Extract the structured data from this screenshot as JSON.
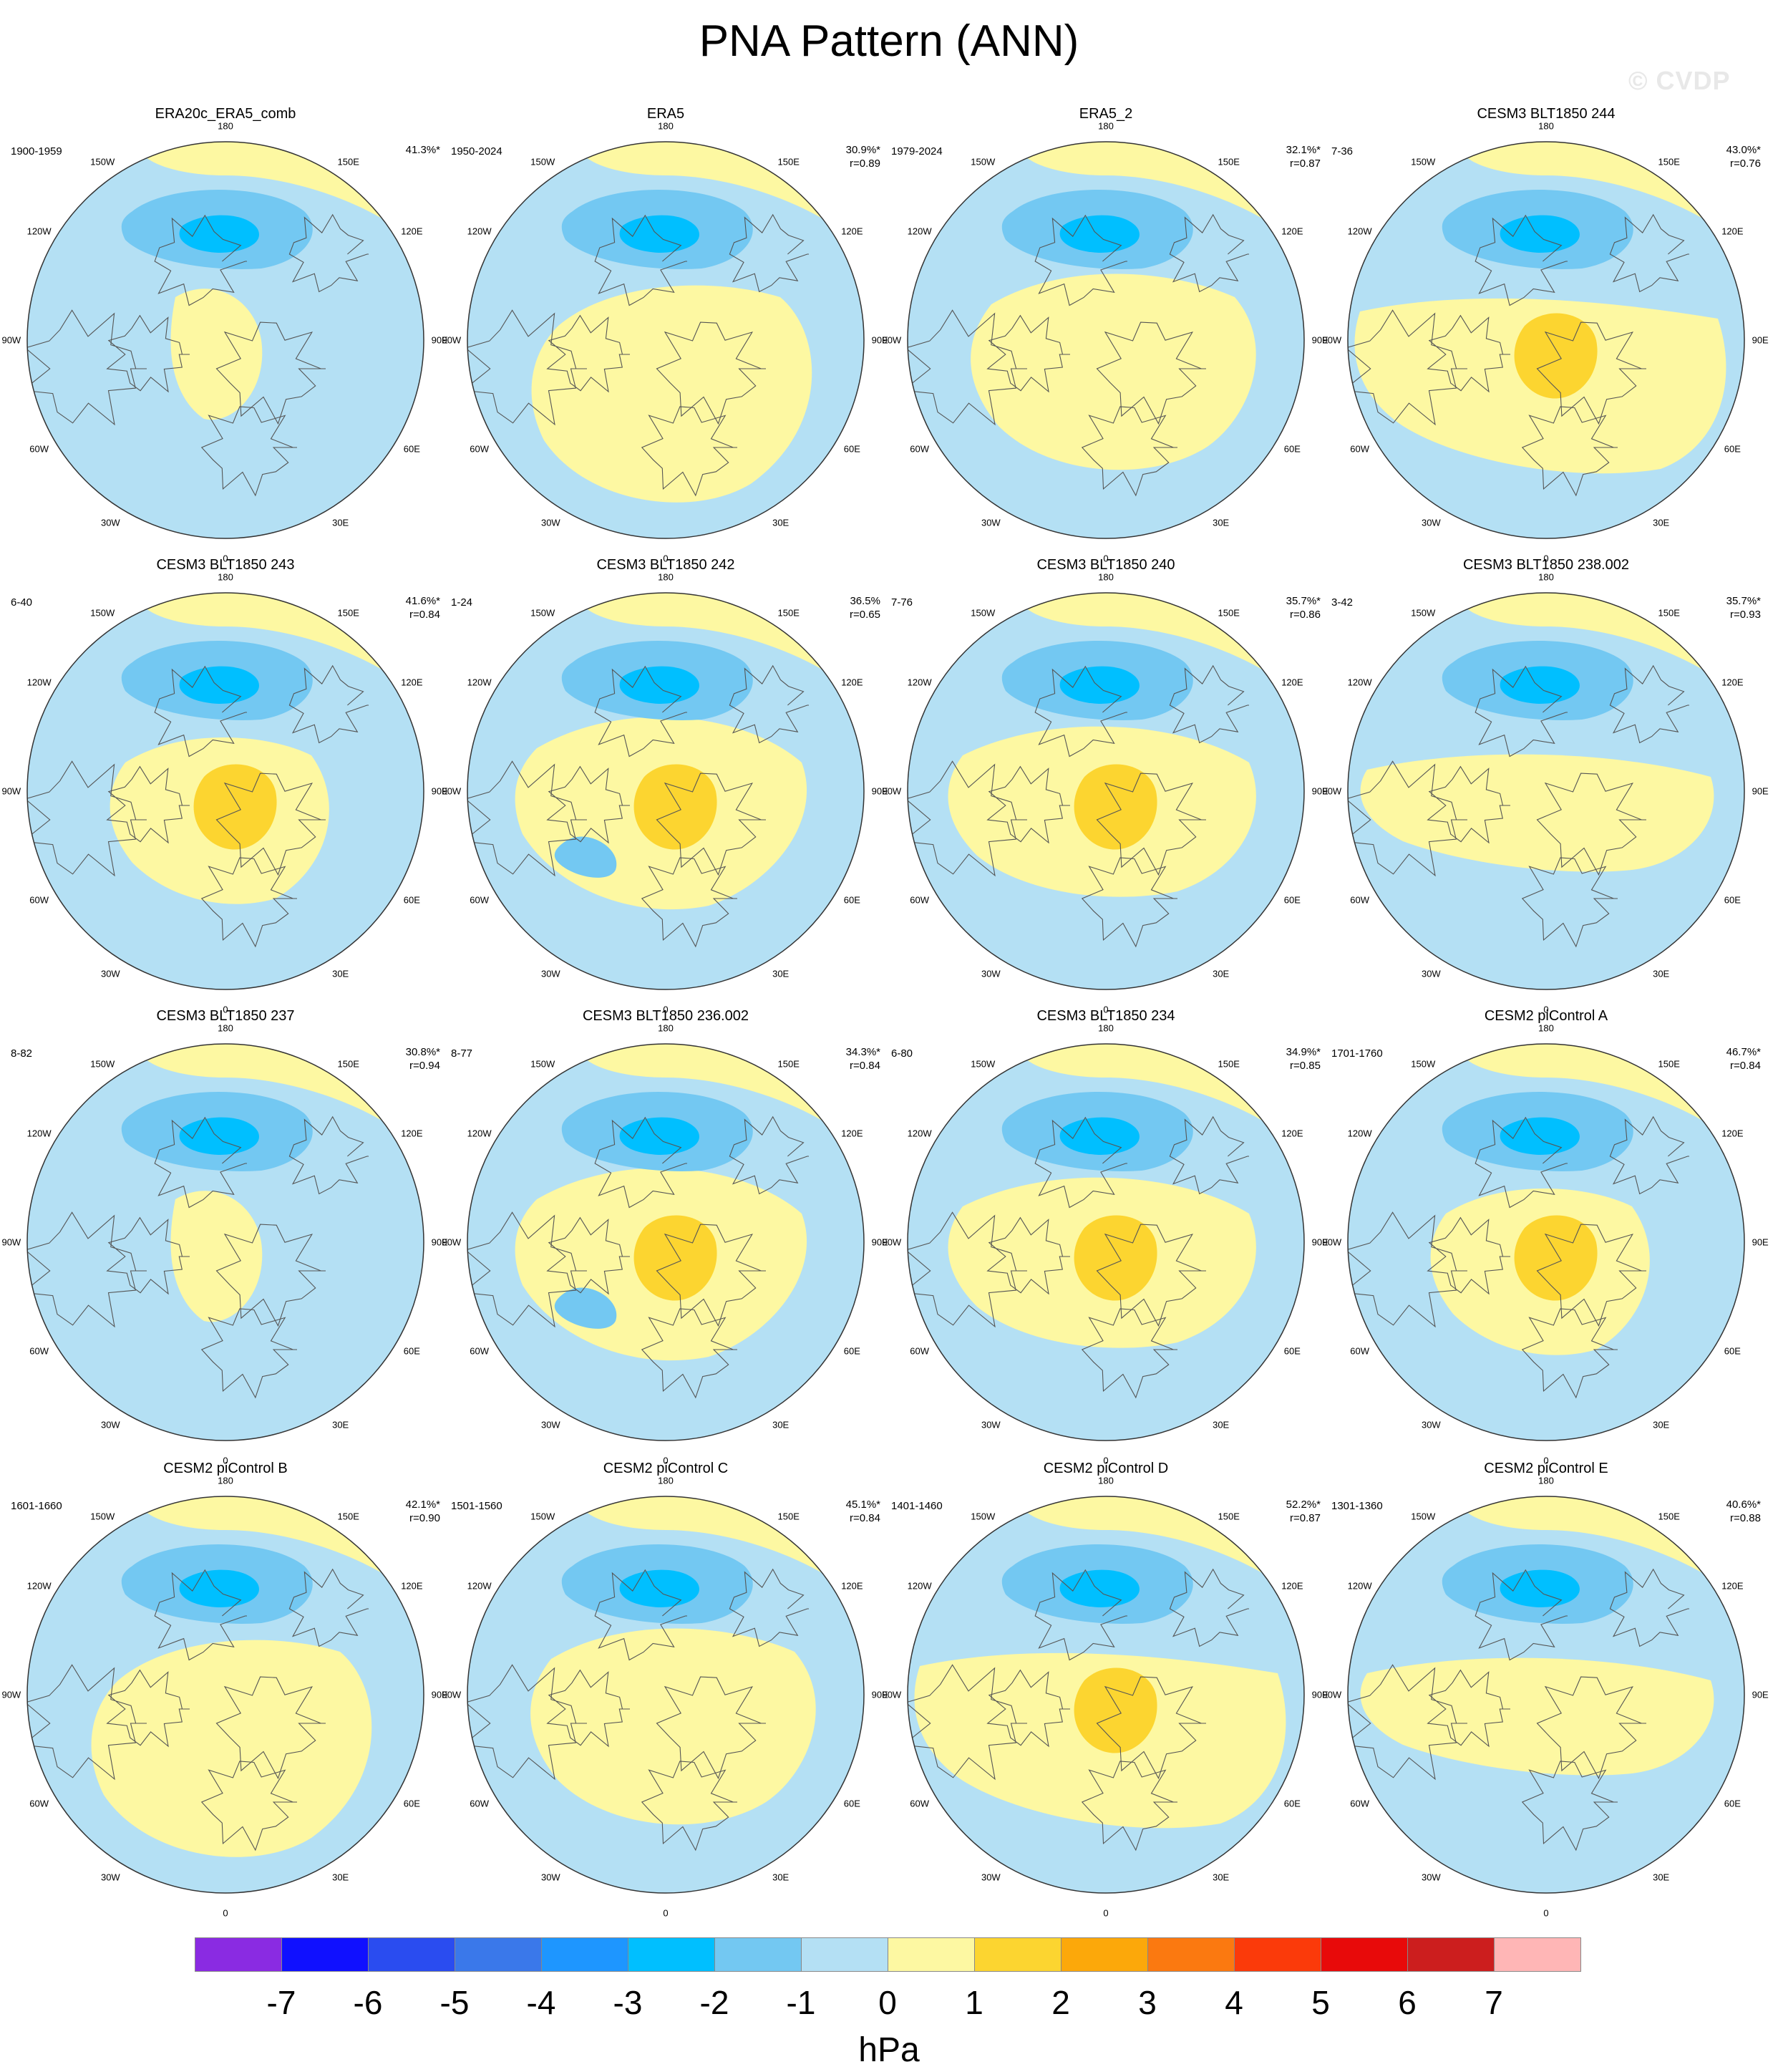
{
  "title": "PNA Pattern (ANN)",
  "watermark": "© CVDP",
  "longitude_labels": [
    "180",
    "150E",
    "120E",
    "90E",
    "60E",
    "30E",
    "0",
    "30W",
    "60W",
    "90W",
    "120W",
    "150W"
  ],
  "panels": [
    {
      "title": "ERA20c_ERA5_comb",
      "years": "1900-1959",
      "pct": "41.3%*",
      "r": "",
      "variant": 1
    },
    {
      "title": "ERA5",
      "years": "1950-2024",
      "pct": "30.9%*",
      "r": "r=0.89",
      "variant": 2
    },
    {
      "title": "ERA5_2",
      "years": "1979-2024",
      "pct": "32.1%*",
      "r": "r=0.87",
      "variant": 3
    },
    {
      "title": "CESM3 BLT1850 244",
      "years": "7-36",
      "pct": "43.0%*",
      "r": "r=0.76",
      "variant": 4
    },
    {
      "title": "CESM3 BLT1850 243",
      "years": "6-40",
      "pct": "41.6%*",
      "r": "r=0.84",
      "variant": 5
    },
    {
      "title": "CESM3 BLT1850 242",
      "years": "1-24",
      "pct": "36.5%",
      "r": "r=0.65",
      "variant": 6
    },
    {
      "title": "CESM3 BLT1850 240",
      "years": "7-76",
      "pct": "35.7%*",
      "r": "r=0.86",
      "variant": 7
    },
    {
      "title": "CESM3 BLT1850 238.002",
      "years": "3-42",
      "pct": "35.7%*",
      "r": "r=0.93",
      "variant": 8
    },
    {
      "title": "CESM3 BLT1850 237",
      "years": "8-82",
      "pct": "30.8%*",
      "r": "r=0.94",
      "variant": 1
    },
    {
      "title": "CESM3 BLT1850 236.002",
      "years": "8-77",
      "pct": "34.3%*",
      "r": "r=0.84",
      "variant": 6
    },
    {
      "title": "CESM3 BLT1850 234",
      "years": "6-80",
      "pct": "34.9%*",
      "r": "r=0.85",
      "variant": 7
    },
    {
      "title": "CESM2 piControl A",
      "years": "1701-1760",
      "pct": "46.7%*",
      "r": "r=0.84",
      "variant": 5
    },
    {
      "title": "CESM2 piControl B",
      "years": "1601-1660",
      "pct": "42.1%*",
      "r": "r=0.90",
      "variant": 2
    },
    {
      "title": "CESM2 piControl C",
      "years": "1501-1560",
      "pct": "45.1%*",
      "r": "r=0.84",
      "variant": 3
    },
    {
      "title": "CESM2 piControl D",
      "years": "1401-1460",
      "pct": "52.2%*",
      "r": "r=0.87",
      "variant": 4
    },
    {
      "title": "CESM2 piControl E",
      "years": "1301-1360",
      "pct": "40.6%*",
      "r": "r=0.88",
      "variant": 8
    }
  ],
  "colorbar": {
    "labels": [
      "-7",
      "-6",
      "-5",
      "-4",
      "-3",
      "-2",
      "-1",
      "0",
      "1",
      "2",
      "3",
      "4",
      "5",
      "6",
      "7"
    ],
    "colors": [
      "#8a2be2",
      "#1010ff",
      "#2a4cf0",
      "#3a78ea",
      "#1e96ff",
      "#00bfff",
      "#73c8f2",
      "#b4e0f4",
      "#fdf8a2",
      "#fcd530",
      "#fca80a",
      "#fb7910",
      "#fb3a0a",
      "#e80a0a",
      "#cc1e1e",
      "#ffb6b6"
    ],
    "units": "hPa"
  }
}
